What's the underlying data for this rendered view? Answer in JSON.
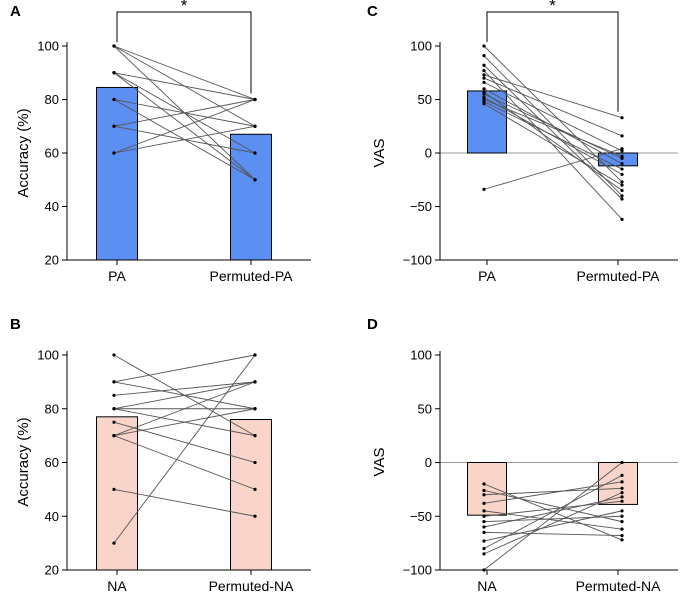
{
  "colors": {
    "positive": "#5b8ff2",
    "negative": "#f9d4c8"
  },
  "chart_data": [
    {
      "panel": "A",
      "type": "bar",
      "ylabel": "Accuracy (%)",
      "ylim": [
        20,
        100
      ],
      "yticks": [
        20,
        40,
        60,
        80,
        100
      ],
      "categories": [
        "PA",
        "Permuted-PA"
      ],
      "values": [
        84.5,
        67
      ],
      "color": "positive",
      "significance": "*",
      "pairs": [
        [
          100,
          80
        ],
        [
          100,
          70
        ],
        [
          100,
          50
        ],
        [
          90,
          80
        ],
        [
          90,
          60
        ],
        [
          90,
          50
        ],
        [
          80,
          70
        ],
        [
          80,
          50
        ],
        [
          70,
          80
        ],
        [
          70,
          60
        ],
        [
          60,
          80
        ],
        [
          60,
          70
        ]
      ]
    },
    {
      "panel": "C",
      "type": "bar",
      "ylabel": "VAS",
      "ylim": [
        -100,
        100
      ],
      "yticks": [
        -100,
        -50,
        0,
        50,
        100
      ],
      "categories": [
        "PA",
        "Permuted-PA"
      ],
      "values": [
        58,
        -12
      ],
      "color": "positive",
      "significance": "*",
      "pairs": [
        [
          100,
          -27
        ],
        [
          91,
          -40
        ],
        [
          82,
          -43
        ],
        [
          77,
          -62
        ],
        [
          73,
          33
        ],
        [
          70,
          16
        ],
        [
          66,
          2
        ],
        [
          60,
          -10
        ],
        [
          57,
          -35
        ],
        [
          55,
          -5
        ],
        [
          52,
          -20
        ],
        [
          50,
          -3
        ],
        [
          48,
          -15
        ],
        [
          46,
          -30
        ],
        [
          -34,
          4
        ]
      ]
    },
    {
      "panel": "B",
      "type": "bar",
      "ylabel": "Accuracy (%)",
      "ylim": [
        20,
        100
      ],
      "yticks": [
        20,
        40,
        60,
        80,
        100
      ],
      "categories": [
        "NA",
        "Permuted-NA"
      ],
      "values": [
        77,
        76
      ],
      "color": "negative",
      "pairs": [
        [
          100,
          70
        ],
        [
          90,
          100
        ],
        [
          90,
          80
        ],
        [
          85,
          90
        ],
        [
          80,
          90
        ],
        [
          80,
          80
        ],
        [
          80,
          70
        ],
        [
          75,
          60
        ],
        [
          70,
          80
        ],
        [
          70,
          50
        ],
        [
          70,
          90
        ],
        [
          50,
          40
        ],
        [
          30,
          100
        ]
      ]
    },
    {
      "panel": "D",
      "type": "bar",
      "ylabel": "VAS",
      "ylim": [
        -100,
        100
      ],
      "yticks": [
        -100,
        -50,
        0,
        50,
        100
      ],
      "categories": [
        "NA",
        "Permuted-NA"
      ],
      "values": [
        -49,
        -39
      ],
      "color": "negative",
      "pairs": [
        [
          -20,
          -72
        ],
        [
          -26,
          -55
        ],
        [
          -30,
          -24
        ],
        [
          -38,
          -18
        ],
        [
          -45,
          -62
        ],
        [
          -50,
          -36
        ],
        [
          -55,
          -50
        ],
        [
          -60,
          -32
        ],
        [
          -65,
          -68
        ],
        [
          -73,
          -45
        ],
        [
          -80,
          -12
        ],
        [
          -85,
          -28
        ],
        [
          -100,
          0
        ]
      ]
    }
  ]
}
